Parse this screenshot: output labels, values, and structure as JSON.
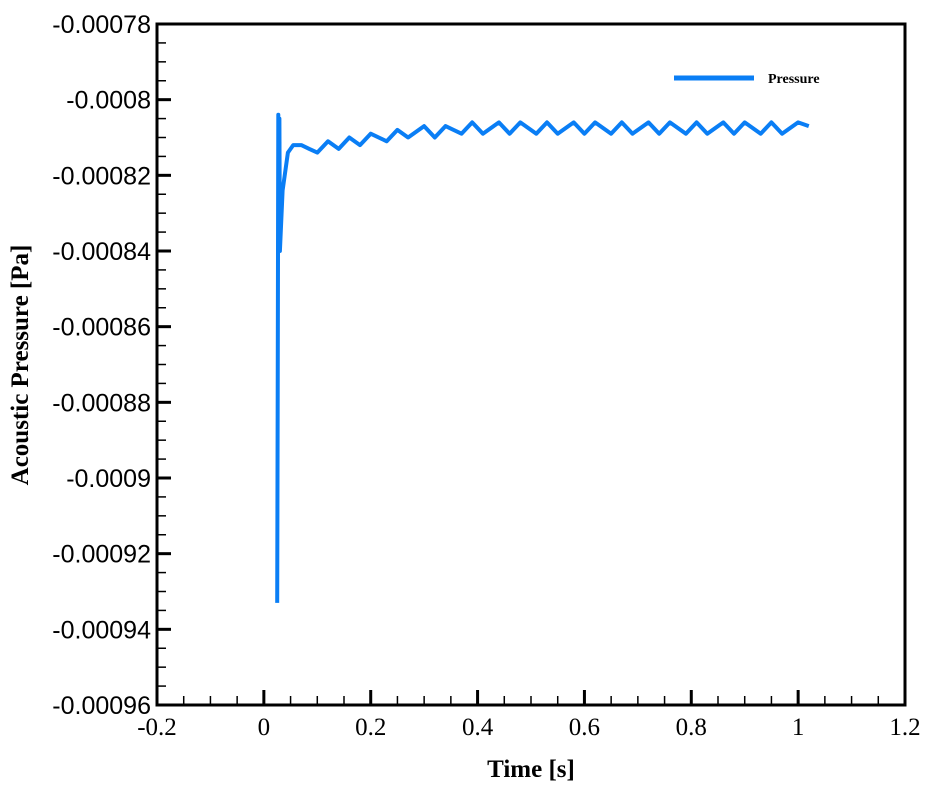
{
  "chart_data": {
    "type": "line",
    "title": "",
    "xlabel": "Time [s]",
    "ylabel": "Acoustic Pressure [Pa]",
    "xlim": [
      -0.2,
      1.2
    ],
    "ylim": [
      -0.00096,
      -0.00078
    ],
    "grid": false,
    "legend_position": "top-right (inside)",
    "x_ticks": [
      "-0.2",
      "0",
      "0.2",
      "0.4",
      "0.6",
      "0.8",
      "1",
      "1.2"
    ],
    "y_ticks": [
      "-0.00078",
      "-0.0008",
      "-0.00082",
      "-0.00084",
      "-0.00086",
      "-0.00088",
      "-0.0009",
      "-0.00092",
      "-0.00094",
      "-0.00096"
    ],
    "series": [
      {
        "name": "Pressure",
        "color": "#0A7EF5",
        "x": [
          0.025,
          0.026,
          0.027,
          0.028,
          0.029,
          0.03,
          0.035,
          0.045,
          0.055,
          0.07,
          0.085,
          0.1,
          0.12,
          0.14,
          0.16,
          0.18,
          0.2,
          0.23,
          0.25,
          0.27,
          0.3,
          0.32,
          0.34,
          0.37,
          0.39,
          0.41,
          0.44,
          0.46,
          0.48,
          0.51,
          0.53,
          0.55,
          0.58,
          0.6,
          0.62,
          0.65,
          0.67,
          0.69,
          0.72,
          0.74,
          0.76,
          0.79,
          0.81,
          0.83,
          0.86,
          0.88,
          0.9,
          0.93,
          0.95,
          0.97,
          1.0,
          1.02
        ],
        "y": [
          -0.000933,
          -0.000878,
          -0.000804,
          -0.000825,
          -0.000805,
          -0.00084,
          -0.000824,
          -0.000814,
          -0.000812,
          -0.000812,
          -0.000813,
          -0.000814,
          -0.000811,
          -0.000813,
          -0.00081,
          -0.000812,
          -0.000809,
          -0.000811,
          -0.000808,
          -0.00081,
          -0.000807,
          -0.00081,
          -0.000807,
          -0.000809,
          -0.000806,
          -0.000809,
          -0.000806,
          -0.000809,
          -0.000806,
          -0.000809,
          -0.000806,
          -0.000809,
          -0.000806,
          -0.000809,
          -0.000806,
          -0.000809,
          -0.000806,
          -0.000809,
          -0.000806,
          -0.000809,
          -0.000806,
          -0.000809,
          -0.000806,
          -0.000809,
          -0.000806,
          -0.000809,
          -0.000806,
          -0.000809,
          -0.000806,
          -0.000809,
          -0.000806,
          -0.000807
        ]
      }
    ]
  },
  "legend": {
    "label": "Pressure"
  },
  "axes": {
    "x_title": "Time [s]",
    "y_title": "Acoustic Pressure [Pa]"
  }
}
